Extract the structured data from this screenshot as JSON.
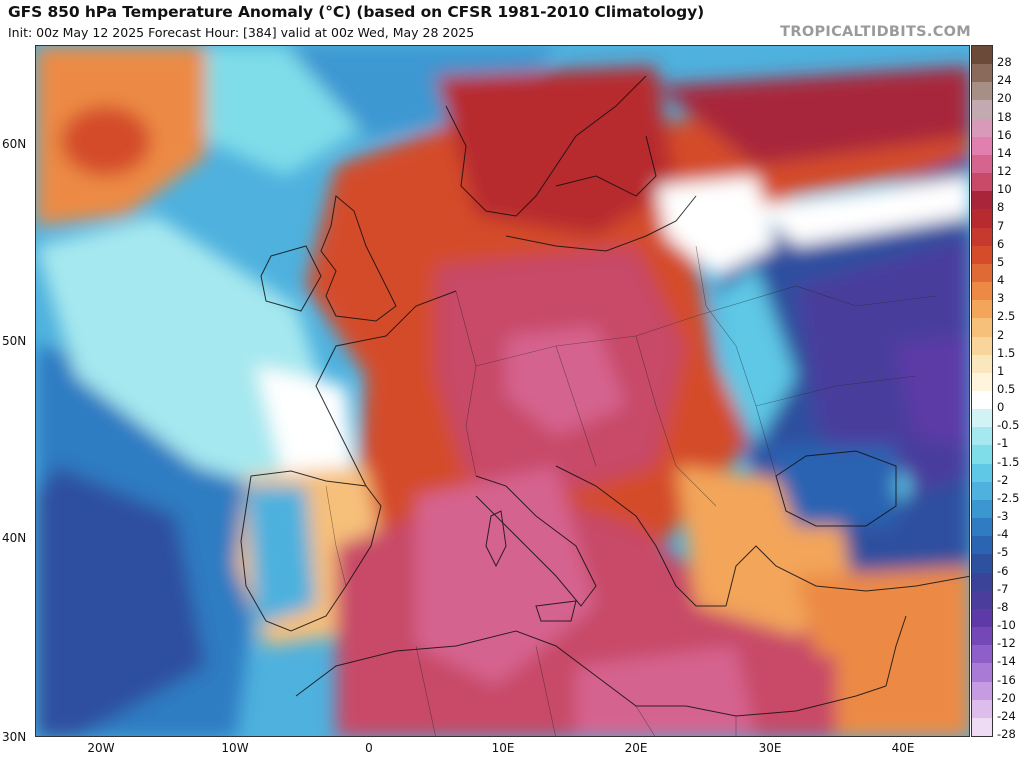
{
  "header": {
    "title": "GFS 850 hPa Temperature Anomaly (°C) (based on CFSR 1981-2010 Climatology)",
    "subtitle": "Init: 00z May 12 2025   Forecast Hour: [384]   valid at 00z Wed, May 28 2025",
    "brand": "TROPICALTIDBITS.COM"
  },
  "map": {
    "lat_labels": [
      "60N",
      "50N",
      "40N",
      "30N"
    ],
    "lon_labels": [
      "20W",
      "10W",
      "0",
      "10E",
      "20E",
      "30E",
      "40E"
    ]
  },
  "colorbar": {
    "labels": [
      "28",
      "24",
      "20",
      "18",
      "16",
      "14",
      "12",
      "10",
      "8",
      "7",
      "6",
      "5",
      "4",
      "3",
      "2.5",
      "2",
      "1.5",
      "1",
      "0.5",
      "0",
      "-0.5",
      "-1",
      "-1.5",
      "-2",
      "-2.5",
      "-3",
      "-4",
      "-5",
      "-6",
      "-7",
      "-8",
      "-10",
      "-12",
      "-14",
      "-16",
      "-20",
      "-24",
      "-28"
    ],
    "colors": [
      "#6b4a3a",
      "#8a6a5a",
      "#a88f86",
      "#c2aab0",
      "#d89ab8",
      "#e17fb0",
      "#d5648f",
      "#c84a68",
      "#a8253a",
      "#b72a2f",
      "#c5392f",
      "#d44c2a",
      "#e06a35",
      "#ec8a45",
      "#f3a55a",
      "#f6bf7a",
      "#f8d59a",
      "#fbe7bd",
      "#fff4dc",
      "#ffffff",
      "#d2f3f5",
      "#a6e8ef",
      "#7fdde9",
      "#5fc8e6",
      "#4eb1de",
      "#3c97d1",
      "#2f7cc2",
      "#2a64b2",
      "#2d509f",
      "#3a4397",
      "#4a3d9c",
      "#5d3aa7",
      "#7548b8",
      "#8f5fc9",
      "#a97ad6",
      "#c79be2",
      "#dcbdec",
      "#eddcf4"
    ]
  }
}
